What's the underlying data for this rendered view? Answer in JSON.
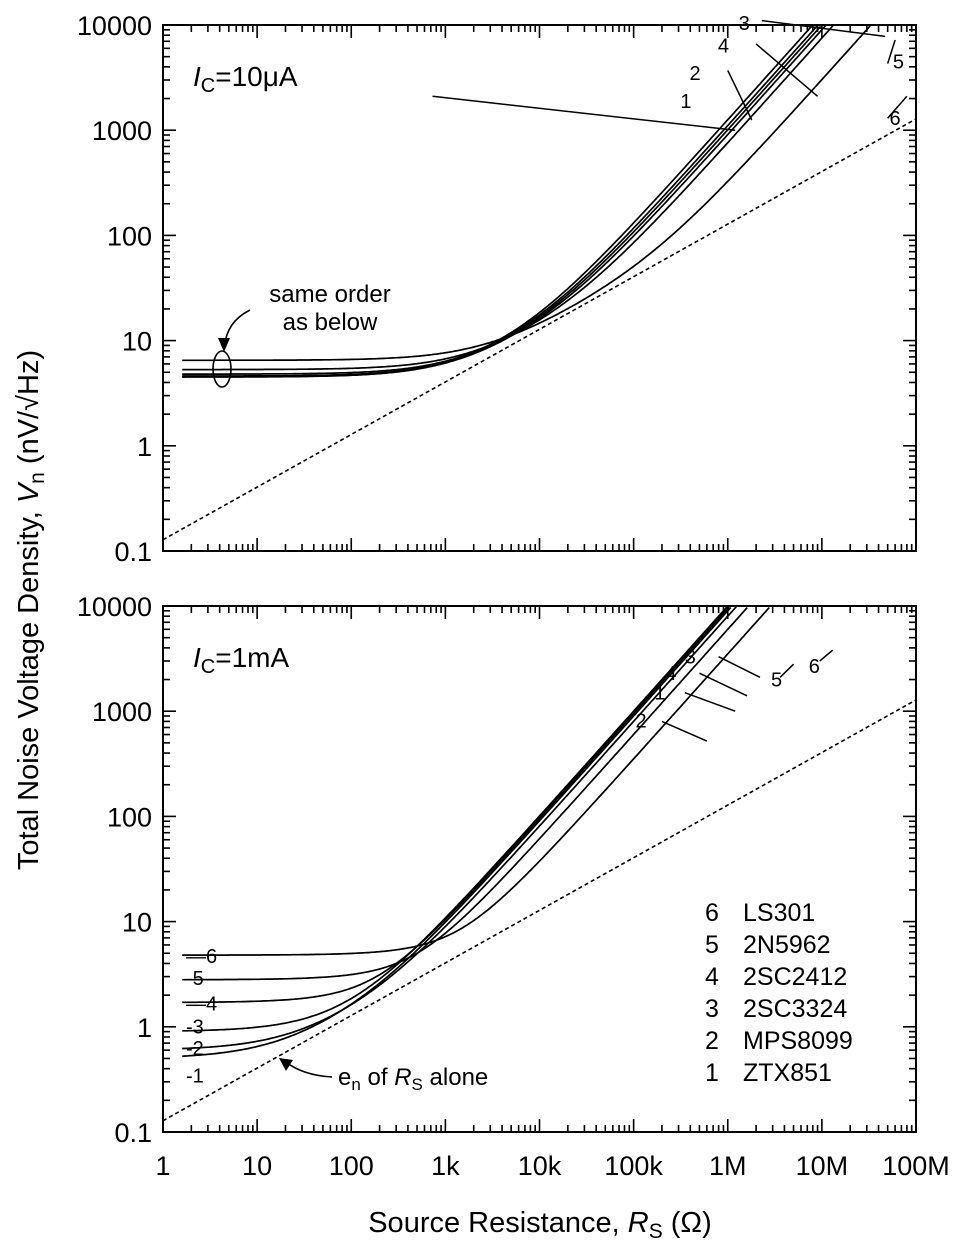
{
  "chart_data": {
    "type": "line",
    "xscale": "log",
    "yscale": "log",
    "xlabel": "Source Resistance, R_S (Ω)",
    "xlabel_parts": {
      "prefix": "Source Resistance, ",
      "var": "R",
      "sub": "S",
      "suffix": " (Ω)"
    },
    "ylabel_parts": {
      "prefix": "Total Noise Voltage Density, ",
      "var": "V",
      "sub": "n",
      "suffix": " (nV/√Hz)"
    },
    "xlim": [
      1,
      100000000
    ],
    "ylim": [
      0.1,
      10000
    ],
    "x_ticks": [
      {
        "v": 1,
        "label": "1"
      },
      {
        "v": 10,
        "label": "10"
      },
      {
        "v": 100,
        "label": "100"
      },
      {
        "v": 1000,
        "label": "1k"
      },
      {
        "v": 10000,
        "label": "10k"
      },
      {
        "v": 100000,
        "label": "100k"
      },
      {
        "v": 1000000,
        "label": "1M"
      },
      {
        "v": 10000000,
        "label": "10M"
      },
      {
        "v": 100000000,
        "label": "100M"
      }
    ],
    "y_ticks": [
      {
        "v": 0.1,
        "label": "0.1"
      },
      {
        "v": 1,
        "label": "1"
      },
      {
        "v": 10,
        "label": "10"
      },
      {
        "v": 100,
        "label": "100"
      },
      {
        "v": 1000,
        "label": "1000"
      },
      {
        "v": 10000,
        "label": "10000"
      }
    ],
    "legend": [
      {
        "num": "6",
        "name": "LS301"
      },
      {
        "num": "5",
        "name": "2N5962"
      },
      {
        "num": "4",
        "name": "2SC2412"
      },
      {
        "num": "3",
        "name": "2SC3324"
      },
      {
        "num": "2",
        "name": "MPS8099"
      },
      {
        "num": "1",
        "name": "ZTX851"
      }
    ],
    "panels": [
      {
        "ic_label": {
          "var": "I",
          "sub": "C",
          "value": "=10μA"
        },
        "annotation_lines": [
          "same order",
          "as below"
        ],
        "series": [
          {
            "id": "1",
            "en": 4.5,
            "in": 0.0009
          },
          {
            "id": "2",
            "en": 4.55,
            "in": 0.001
          },
          {
            "id": "3",
            "en": 4.6,
            "in": 0.00125
          },
          {
            "id": "4",
            "en": 4.8,
            "in": 0.0011
          },
          {
            "id": "5",
            "en": 5.3,
            "in": 0.00075
          },
          {
            "id": "6",
            "en": 6.5,
            "in": 0.0003
          }
        ],
        "reference": {
          "name": "thermal noise of R_S",
          "coeff": 0.128
        }
      },
      {
        "ic_label": {
          "var": "I",
          "sub": "C",
          "value": "=1mA"
        },
        "annotation_parts": {
          "prefix": "e",
          "sub": "n",
          "mid": " of ",
          "var": "R",
          "var_sub": "S",
          "suffix": " alone"
        },
        "series": [
          {
            "id": "1",
            "en": 0.5,
            "in": 0.009
          },
          {
            "id": "2",
            "en": 0.6,
            "in": 0.008
          },
          {
            "id": "3",
            "en": 0.9,
            "in": 0.01
          },
          {
            "id": "4",
            "en": 1.7,
            "in": 0.0095
          },
          {
            "id": "5",
            "en": 2.8,
            "in": 0.006
          },
          {
            "id": "6",
            "en": 4.8,
            "in": 0.0035
          }
        ],
        "reference": {
          "name": "thermal noise of R_S",
          "coeff": 0.128
        }
      }
    ]
  }
}
